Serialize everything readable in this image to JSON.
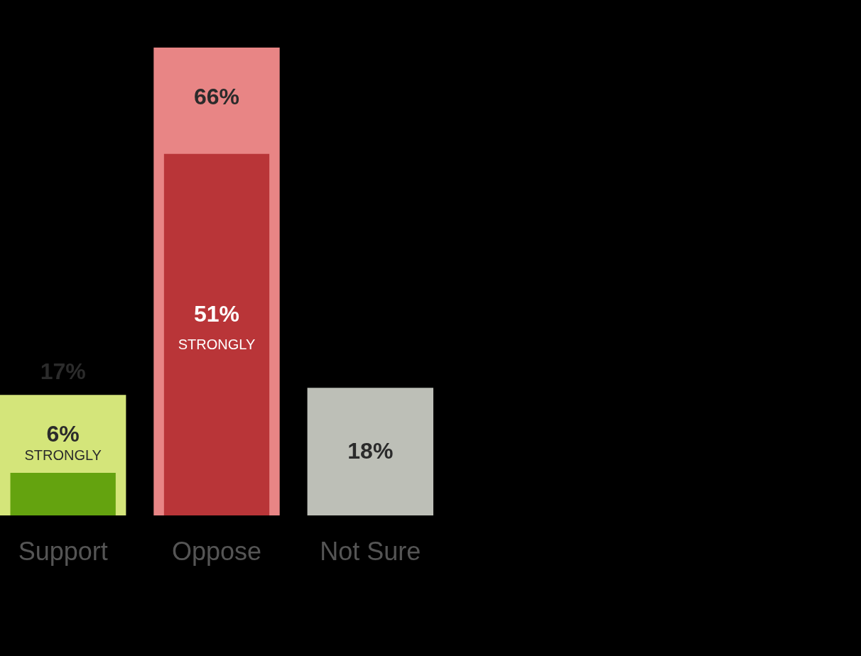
{
  "chart_data": {
    "type": "bar",
    "categories": [
      "Support",
      "Oppose",
      "Not Sure"
    ],
    "series": [
      {
        "colors": [
          "#d4e57a",
          "#e88585",
          "#bdbfb7"
        ],
        "values": [
          17,
          66,
          18
        ],
        "value_labels": [
          "17%",
          "66%",
          "18%"
        ]
      },
      {
        "name": "STRONGLY",
        "colors": [
          "#64a30f",
          "#b93538",
          null
        ],
        "values": [
          6,
          51,
          null
        ],
        "value_labels": [
          "6%",
          "51%",
          null
        ]
      }
    ]
  }
}
